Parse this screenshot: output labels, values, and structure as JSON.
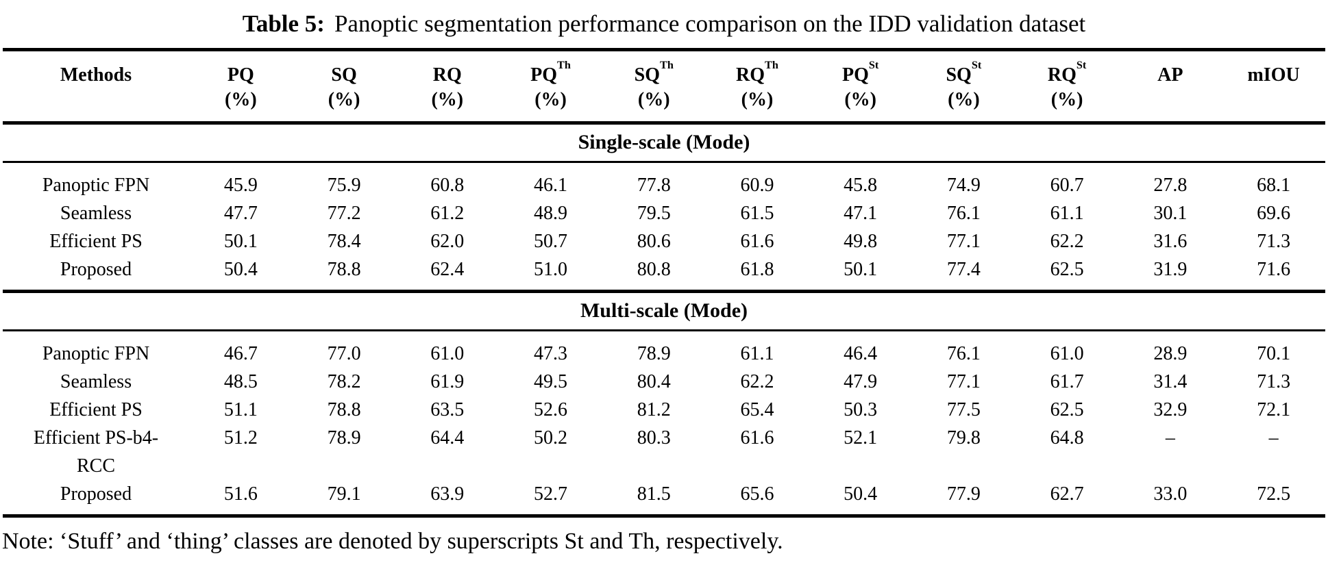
{
  "title": {
    "label": "Table 5:",
    "text": "Panoptic segmentation performance comparison on the IDD validation dataset"
  },
  "table": {
    "columns": [
      {
        "name": "Methods",
        "sup": "",
        "unit": ""
      },
      {
        "name": "PQ",
        "sup": "",
        "unit": "(%)"
      },
      {
        "name": "SQ",
        "sup": "",
        "unit": "(%)"
      },
      {
        "name": "RQ",
        "sup": "",
        "unit": "(%)"
      },
      {
        "name": "PQ",
        "sup": "Th",
        "unit": "(%)"
      },
      {
        "name": "SQ",
        "sup": "Th",
        "unit": "(%)"
      },
      {
        "name": "RQ",
        "sup": "Th",
        "unit": "(%)"
      },
      {
        "name": "PQ",
        "sup": "St",
        "unit": "(%)"
      },
      {
        "name": "SQ",
        "sup": "St",
        "unit": "(%)"
      },
      {
        "name": "RQ",
        "sup": "St",
        "unit": "(%)"
      },
      {
        "name": "AP",
        "sup": "",
        "unit": ""
      },
      {
        "name": "mIOU",
        "sup": "",
        "unit": ""
      }
    ],
    "sections": [
      {
        "title": "Single-scale (Mode)",
        "rows": [
          {
            "method": "Panoptic FPN",
            "values": [
              "45.9",
              "75.9",
              "60.8",
              "46.1",
              "77.8",
              "60.9",
              "45.8",
              "74.9",
              "60.7",
              "27.8",
              "68.1"
            ]
          },
          {
            "method": "Seamless",
            "values": [
              "47.7",
              "77.2",
              "61.2",
              "48.9",
              "79.5",
              "61.5",
              "47.1",
              "76.1",
              "61.1",
              "30.1",
              "69.6"
            ]
          },
          {
            "method": "Efficient PS",
            "values": [
              "50.1",
              "78.4",
              "62.0",
              "50.7",
              "80.6",
              "61.6",
              "49.8",
              "77.1",
              "62.2",
              "31.6",
              "71.3"
            ]
          },
          {
            "method": "Proposed",
            "values": [
              "50.4",
              "78.8",
              "62.4",
              "51.0",
              "80.8",
              "61.8",
              "50.1",
              "77.4",
              "62.5",
              "31.9",
              "71.6"
            ]
          }
        ]
      },
      {
        "title": "Multi-scale (Mode)",
        "rows": [
          {
            "method": "Panoptic FPN",
            "values": [
              "46.7",
              "77.0",
              "61.0",
              "47.3",
              "78.9",
              "61.1",
              "46.4",
              "76.1",
              "61.0",
              "28.9",
              "70.1"
            ]
          },
          {
            "method": "Seamless",
            "values": [
              "48.5",
              "78.2",
              "61.9",
              "49.5",
              "80.4",
              "62.2",
              "47.9",
              "77.1",
              "61.7",
              "31.4",
              "71.3"
            ]
          },
          {
            "method": "Efficient PS",
            "values": [
              "51.1",
              "78.8",
              "63.5",
              "52.6",
              "81.2",
              "65.4",
              "50.3",
              "77.5",
              "62.5",
              "32.9",
              "72.1"
            ]
          },
          {
            "method": "Efficient PS-b4-RCC",
            "values": [
              "51.2",
              "78.9",
              "64.4",
              "50.2",
              "80.3",
              "61.6",
              "52.1",
              "79.8",
              "64.8",
              "–",
              "–"
            ]
          },
          {
            "method": "Proposed",
            "values": [
              "51.6",
              "79.1",
              "63.9",
              "52.7",
              "81.5",
              "65.6",
              "50.4",
              "77.9",
              "62.7",
              "33.0",
              "72.5"
            ]
          }
        ]
      }
    ]
  },
  "note": {
    "text": "Note: ‘Stuff’ and ‘thing’ classes are denoted by superscripts St and Th, respectively."
  }
}
